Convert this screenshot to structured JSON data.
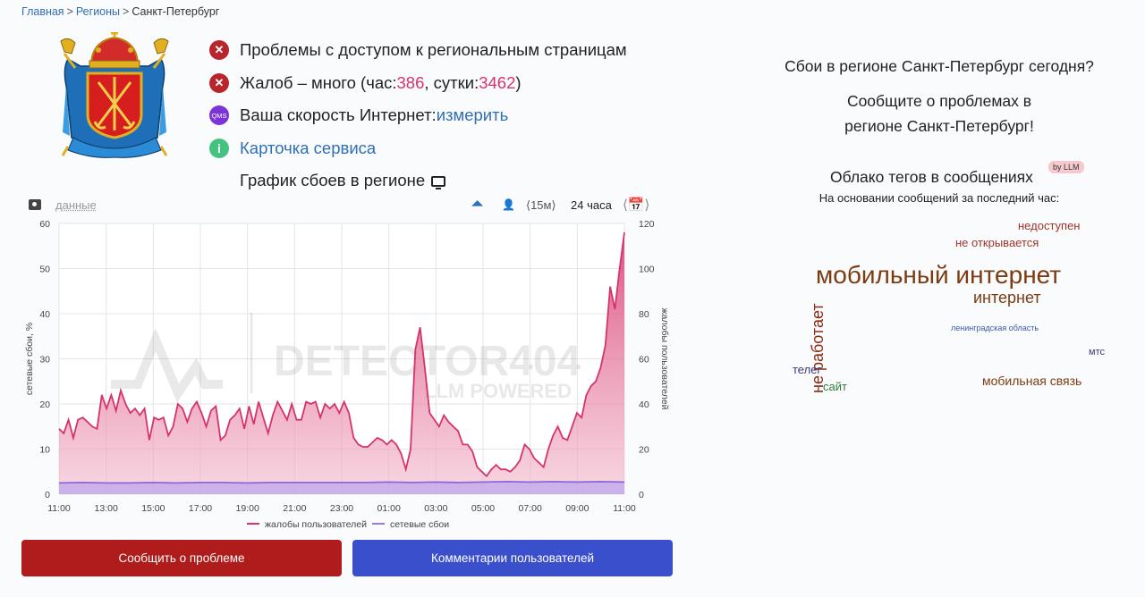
{
  "breadcrumb": {
    "home": "Главная",
    "regions": "Регионы",
    "current": "Санкт-Петербург",
    "sep": ">"
  },
  "status": {
    "access_problems": "Проблемы с доступом к региональным страницам",
    "complaints_prefix": "Жалоб – много (час: ",
    "complaints_hour": "386",
    "complaints_mid": ", сутки: ",
    "complaints_day": "3462",
    "complaints_suffix": ")",
    "speed_prefix": "Ваша скорость Интернет: ",
    "speed_link": "измерить",
    "qms_label": "QMS",
    "service_card": "Карточка сервиса",
    "graph_title": "График сбоев в регионе"
  },
  "chart_toolbar": {
    "data_link": "данные",
    "period_15m": "⟨15м⟩",
    "period_24h": "24 часа",
    "cal_nav": "⟨📅⟩"
  },
  "chart_data": {
    "type": "area",
    "watermark": "DETECTOR404",
    "watermark_sub": "LLM POWERED",
    "x_ticks": [
      "11:00",
      "13:00",
      "15:00",
      "17:00",
      "19:00",
      "21:00",
      "23:00",
      "01:00",
      "03:00",
      "05:00",
      "07:00",
      "09:00",
      "11:00"
    ],
    "y_left": {
      "label": "сетевые сбои, %",
      "ticks": [
        0,
        10,
        20,
        30,
        40,
        50,
        60
      ],
      "range": [
        0,
        60
      ]
    },
    "y_right": {
      "label": "жалобы пользователей",
      "ticks": [
        0,
        20,
        40,
        60,
        80,
        100,
        120
      ],
      "range": [
        0,
        120
      ]
    },
    "series": [
      {
        "name": "жалобы пользователей",
        "axis": "right",
        "color": "#d6336c",
        "values": [
          29,
          27,
          33,
          25,
          33,
          34,
          32,
          30,
          29,
          44,
          38,
          44,
          37,
          46,
          40,
          36,
          38,
          35,
          38,
          24,
          34,
          33,
          34,
          26,
          30,
          40,
          38,
          32,
          38,
          41,
          36,
          30,
          37,
          39,
          24,
          26,
          33,
          35,
          38,
          29,
          39,
          31,
          41,
          34,
          27,
          35,
          41,
          37,
          33,
          40,
          33,
          33,
          41,
          40,
          41,
          34,
          40,
          38,
          40,
          36,
          41,
          36,
          25,
          22,
          21,
          21,
          23,
          25,
          24,
          22,
          24,
          22,
          18,
          11,
          20,
          64,
          74,
          56,
          36,
          33,
          30,
          35,
          32,
          30,
          28,
          22,
          22,
          19,
          12,
          10,
          8,
          11,
          13,
          11,
          11,
          10,
          12,
          15,
          22,
          20,
          16,
          14,
          12,
          20,
          26,
          30,
          25,
          24,
          30,
          36,
          34,
          44,
          48,
          50,
          56,
          66,
          92,
          82,
          100,
          116
        ]
      },
      {
        "name": "сетевые сбои",
        "axis": "left",
        "color": "#9a7be0",
        "values": [
          2.5,
          2.6,
          2.5,
          2.5,
          2.6,
          2.5,
          2.6,
          2.6,
          2.5,
          2.6,
          2.6,
          2.6,
          2.6,
          2.6,
          2.7,
          2.6,
          2.7,
          2.6,
          2.7,
          2.8,
          2.7,
          2.8,
          2.7,
          2.8,
          2.7
        ]
      }
    ]
  },
  "buttons": {
    "report": "Сообщить о проблеме",
    "comments": "Комментарии пользователей"
  },
  "right": {
    "question": "Сбои в регионе Санкт-Петербург сегодня?",
    "cta_line1": "Сообщите о проблемах в",
    "cta_line2": "регионе Санкт-Петербург!",
    "tags_title": "Облако тегов в сообщениях",
    "llm_badge": "by LLM",
    "tags_sub": "На основании сообщений за последний час:"
  },
  "tags": [
    {
      "text": "недоступен",
      "color": "#a0352a"
    },
    {
      "text": "не открывается",
      "color": "#a0352a"
    },
    {
      "text": "мобильный интернет",
      "color": "#7d3b12"
    },
    {
      "text": "интернет",
      "color": "#7d3b12"
    },
    {
      "text": "не работает",
      "color": "#8b2a14"
    },
    {
      "text": "ленинградская область",
      "color": "#3a5aa8"
    },
    {
      "text": "мтс",
      "color": "#3a3a7a"
    },
    {
      "text": "телег",
      "color": "#3a3a7a"
    },
    {
      "text": "сайт",
      "color": "#2e7d32"
    },
    {
      "text": "мобильная связь",
      "color": "#7d3b12"
    }
  ]
}
